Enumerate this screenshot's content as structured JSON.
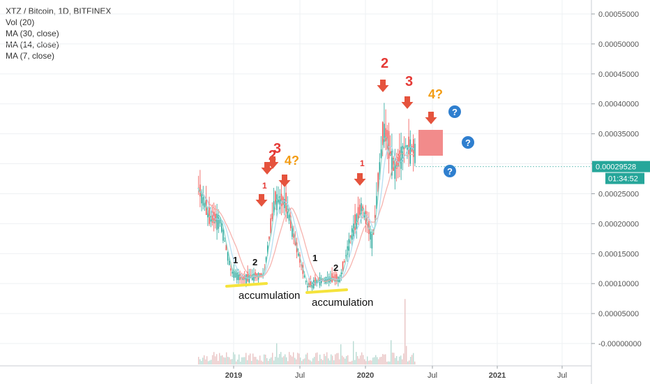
{
  "legend": {
    "title": "XTZ / Bitcoin, 1D, BITFINEX",
    "indicators": [
      "Vol (20)",
      "MA (30, close)",
      "MA (14, close)",
      "MA (7, close)"
    ]
  },
  "price_axis": {
    "ticks": [
      "0.00055000",
      "0.00050000",
      "0.00045000",
      "0.00040000",
      "0.00035000",
      "0.00030000",
      "0.00025000",
      "0.00020000",
      "0.00015000",
      "0.00010000",
      "0.00005000",
      "-0.00000000"
    ],
    "tick_values": [
      0.00055,
      0.0005,
      0.00045,
      0.0004,
      0.00035,
      0.0003,
      0.00025,
      0.0002,
      0.00015,
      0.0001,
      5e-05,
      0.0
    ],
    "last_price_label": "0.00029528",
    "countdown_label": "01:34:52",
    "last_price_color": "#26a69a"
  },
  "time_axis": {
    "labels": [
      "2019",
      "Jul",
      "2020",
      "Jul",
      "2021",
      "Jul"
    ],
    "bold": [
      true,
      false,
      true,
      false,
      true,
      false
    ]
  },
  "annotations": {
    "accumulation_labels": [
      "accumulation",
      "accumulation"
    ],
    "wave_numbers_black": [
      "1",
      "2",
      "1",
      "2"
    ],
    "wave_numbers_red": [
      "1",
      "2",
      "3",
      "1",
      "2",
      "3"
    ],
    "wave_four_labels": [
      "4?",
      "4?"
    ],
    "question_marks": [
      "?",
      "?",
      "?"
    ],
    "colors": {
      "arrow": "#e5533d",
      "red_text": "#e53935",
      "orange_text": "#f39c12",
      "accumulation_line": "#f5e33c",
      "target_box": "#f28b8b",
      "question_badge": "#2f7fcf"
    }
  },
  "chart_data": {
    "type": "line",
    "title": "XTZ / Bitcoin, 1D, BITFINEX",
    "xlabel": "",
    "ylabel": "",
    "ylim": [
      -4e-05,
      0.00058
    ],
    "x": [
      "2018-09",
      "2018-10",
      "2018-11",
      "2018-12",
      "2019-01",
      "2019-02",
      "2019-03",
      "2019-04",
      "2019-05",
      "2019-06",
      "2019-07",
      "2019-08",
      "2019-09",
      "2019-10",
      "2019-11",
      "2019-12",
      "2020-01",
      "2020-02",
      "2020-03",
      "2020-04",
      "2020-05",
      "2020-06"
    ],
    "series": [
      {
        "values": [
          0.00026,
          0.00021,
          0.000205,
          0.00012,
          0.000108,
          0.000112,
          0.000115,
          0.00024,
          0.000235,
          0.00016,
          9.5e-05,
          0.000105,
          0.000108,
          0.000108,
          0.00018,
          0.00023,
          0.00017,
          0.00036,
          0.00029,
          0.00033,
          0.00032,
          0.00029
        ]
      }
    ],
    "legend": "top-left",
    "grid": true
  }
}
